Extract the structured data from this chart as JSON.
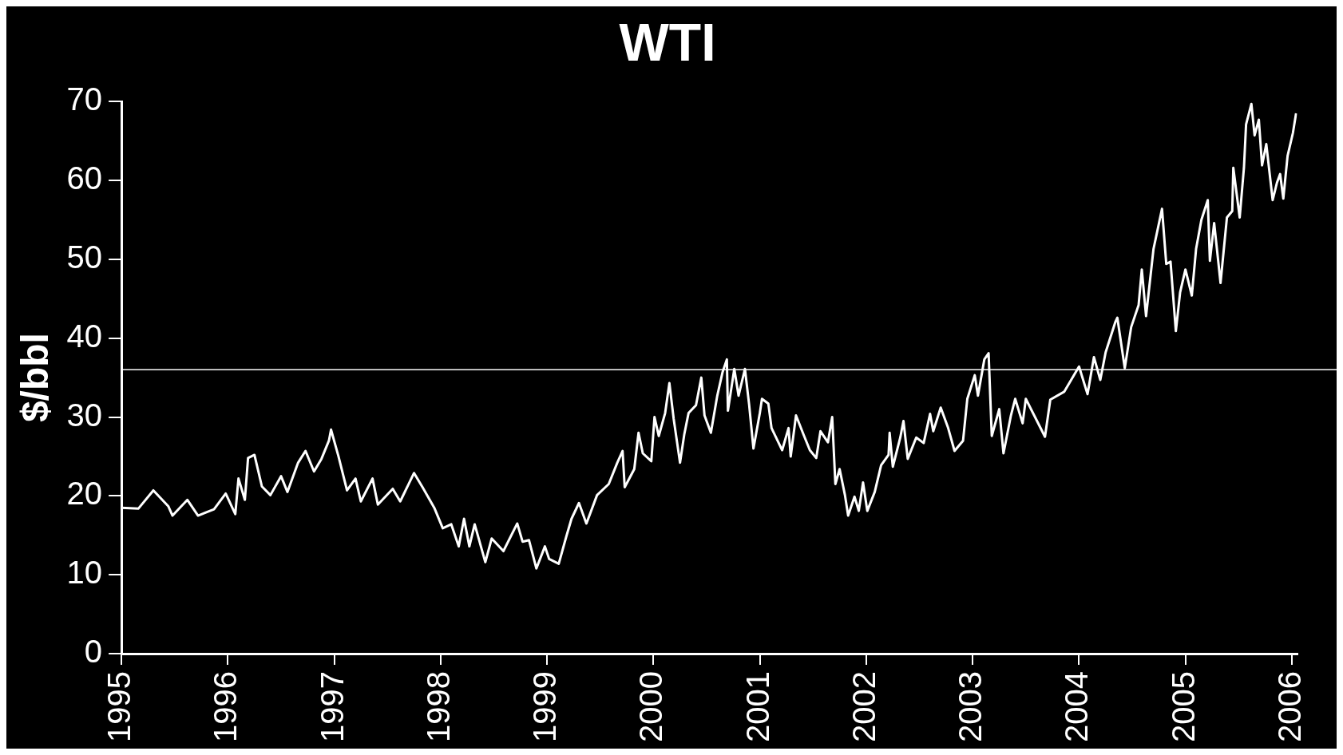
{
  "chart_data": {
    "type": "line",
    "title": "WTI",
    "ylabel": "$/bbl",
    "color": "#ffffff",
    "x": [
      1995.0,
      1995.16,
      1995.3,
      1995.44,
      1995.48,
      1995.62,
      1995.72,
      1995.87,
      1995.98,
      1996.07,
      1996.1,
      1996.16,
      1996.19,
      1996.25,
      1996.32,
      1996.4,
      1996.5,
      1996.56,
      1996.66,
      1996.73,
      1996.81,
      1996.88,
      1996.95,
      1996.97,
      1997.04,
      1997.12,
      1997.2,
      1997.25,
      1997.36,
      1997.41,
      1997.55,
      1997.62,
      1997.75,
      1997.83,
      1997.94,
      1998.02,
      1998.1,
      1998.17,
      1998.22,
      1998.27,
      1998.32,
      1998.42,
      1998.48,
      1998.59,
      1998.72,
      1998.77,
      1998.83,
      1998.9,
      1998.98,
      1999.02,
      1999.11,
      1999.18,
      1999.23,
      1999.3,
      1999.37,
      1999.47,
      1999.58,
      1999.66,
      1999.71,
      1999.73,
      1999.82,
      1999.86,
      1999.9,
      1999.98,
      2000.01,
      2000.05,
      2000.11,
      2000.15,
      2000.19,
      2000.25,
      2000.29,
      2000.33,
      2000.4,
      2000.45,
      2000.48,
      2000.54,
      2000.6,
      2000.65,
      2000.69,
      2000.7,
      2000.76,
      2000.8,
      2000.86,
      2000.9,
      2000.94,
      2001.0,
      2001.02,
      2001.08,
      2001.11,
      2001.21,
      2001.27,
      2001.29,
      2001.34,
      2001.41,
      2001.47,
      2001.53,
      2001.57,
      2001.64,
      2001.68,
      2001.71,
      2001.75,
      2001.8,
      2001.83,
      2001.89,
      2001.93,
      2001.97,
      2002.01,
      2002.08,
      2002.14,
      2002.21,
      2002.22,
      2002.25,
      2002.32,
      2002.35,
      2002.39,
      2002.47,
      2002.54,
      2002.6,
      2002.63,
      2002.7,
      2002.77,
      2002.83,
      2002.91,
      2002.95,
      2003.02,
      2003.05,
      2003.11,
      2003.15,
      2003.18,
      2003.25,
      2003.29,
      2003.36,
      2003.4,
      2003.47,
      2003.5,
      2003.68,
      2003.73,
      2003.86,
      2004.0,
      2004.08,
      2004.14,
      2004.2,
      2004.25,
      2004.34,
      2004.36,
      2004.43,
      2004.49,
      2004.56,
      2004.59,
      2004.63,
      2004.7,
      2004.78,
      2004.82,
      2004.86,
      2004.91,
      2004.95,
      2005.0,
      2005.06,
      2005.1,
      2005.15,
      2005.21,
      2005.23,
      2005.27,
      2005.33,
      2005.39,
      2005.44,
      2005.45,
      2005.51,
      2005.55,
      2005.57,
      2005.62,
      2005.65,
      2005.69,
      2005.72,
      2005.76,
      2005.82,
      2005.86,
      2005.89,
      2005.92,
      2005.96,
      2006.01,
      2006.04
    ],
    "values": [
      18.5,
      18.4,
      20.7,
      18.7,
      17.5,
      19.5,
      17.5,
      18.3,
      20.3,
      17.7,
      22.2,
      19.5,
      24.8,
      25.2,
      21.2,
      20.1,
      22.5,
      20.5,
      24.2,
      25.7,
      23.1,
      24.7,
      27.0,
      28.4,
      25.0,
      20.7,
      22.2,
      19.3,
      22.2,
      18.9,
      20.9,
      19.3,
      22.9,
      21.1,
      18.5,
      15.9,
      16.4,
      13.6,
      17.1,
      13.6,
      16.4,
      11.6,
      14.6,
      13.0,
      16.5,
      14.2,
      14.4,
      10.8,
      13.6,
      12.0,
      11.4,
      14.8,
      17.1,
      19.1,
      16.5,
      20.1,
      21.5,
      24.2,
      25.7,
      21.1,
      23.4,
      28.0,
      25.4,
      24.4,
      30.0,
      27.6,
      30.5,
      34.3,
      29.8,
      24.2,
      27.8,
      30.5,
      31.5,
      35.0,
      30.2,
      28.0,
      32.7,
      35.7,
      37.3,
      30.8,
      36.1,
      32.7,
      36.1,
      31.5,
      26.0,
      30.5,
      32.3,
      31.7,
      28.6,
      25.8,
      28.6,
      25.0,
      30.2,
      27.8,
      25.8,
      24.8,
      28.2,
      26.8,
      30.0,
      21.5,
      23.4,
      20.1,
      17.5,
      19.9,
      18.1,
      21.7,
      18.1,
      20.5,
      23.9,
      25.2,
      28.0,
      23.7,
      27.4,
      29.5,
      24.7,
      27.4,
      26.7,
      30.4,
      28.2,
      31.2,
      28.6,
      25.7,
      27.0,
      32.3,
      35.3,
      32.7,
      37.3,
      38.1,
      27.6,
      31.0,
      25.4,
      30.2,
      32.3,
      29.2,
      32.3,
      27.5,
      32.2,
      33.2,
      36.4,
      32.9,
      37.6,
      34.7,
      38.2,
      42.0,
      42.6,
      36.2,
      41.4,
      44.2,
      48.7,
      42.8,
      51.3,
      56.4,
      49.4,
      49.7,
      40.9,
      45.8,
      48.7,
      45.4,
      51.3,
      55.0,
      57.5,
      49.8,
      54.6,
      47.0,
      55.3,
      56.1,
      61.6,
      55.3,
      61.6,
      67.1,
      69.7,
      65.7,
      67.7,
      61.9,
      64.6,
      57.5,
      59.7,
      60.8,
      57.7,
      63.1,
      66.0,
      68.5
    ],
    "xlim": [
      1995,
      2006.05
    ],
    "xticks": [
      1995,
      1996,
      1997,
      1998,
      1999,
      2000,
      2001,
      2002,
      2003,
      2004,
      2005,
      2006
    ],
    "ylim": [
      0,
      70
    ],
    "yticks": [
      0,
      10,
      20,
      30,
      40,
      50,
      60,
      70
    ],
    "ref_lines": [
      {
        "axis": "y",
        "value": 36,
        "color": "#ffffff"
      }
    ],
    "grid": false,
    "legend": false,
    "marker": "none",
    "line_style": "solid"
  }
}
